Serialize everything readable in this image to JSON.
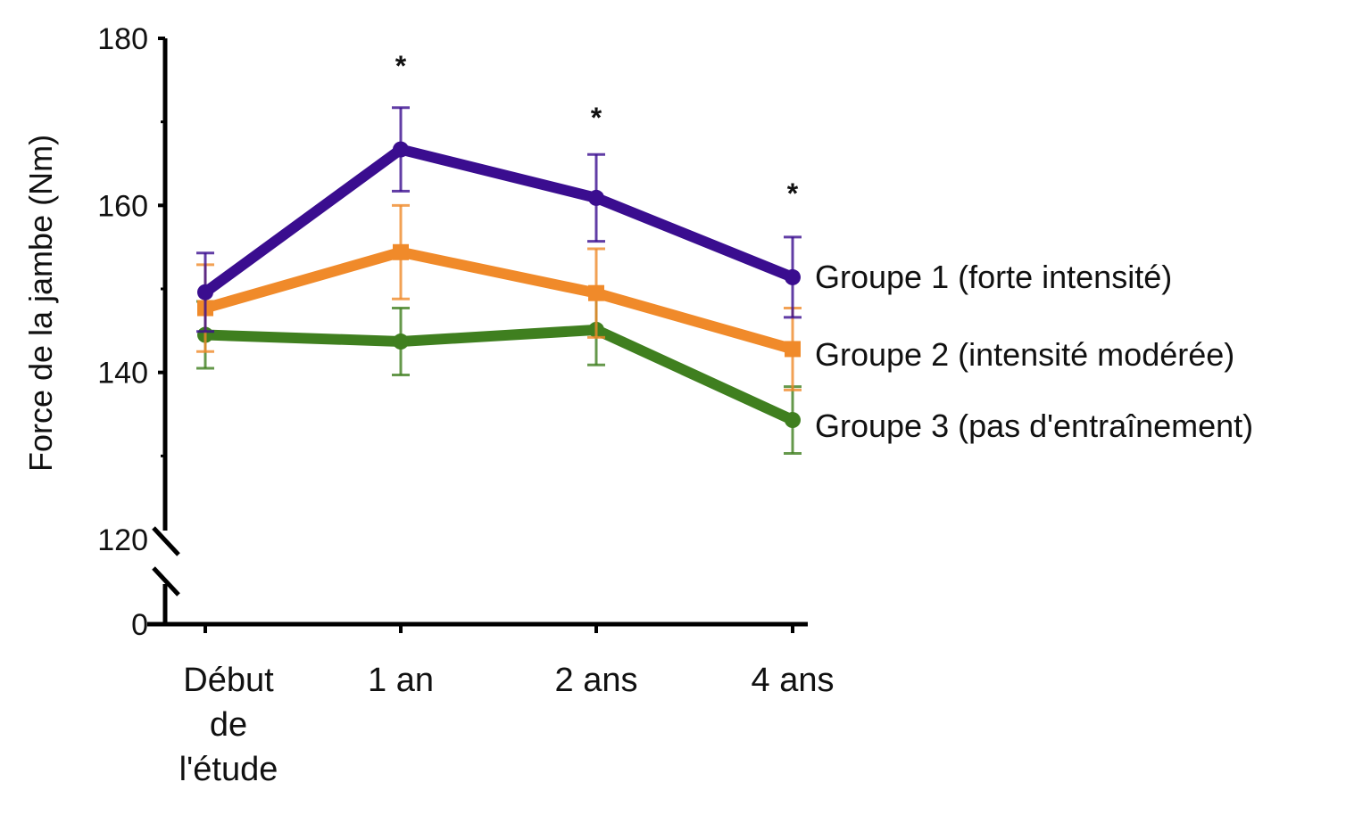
{
  "chart_data": {
    "type": "line",
    "title": "",
    "xlabel": "",
    "ylabel": "Force de la jambe (Nm)",
    "categories": [
      "Début de l'étude",
      "1 an",
      "2 ans",
      "4 ans"
    ],
    "category_lines": [
      [
        "Début",
        "de",
        "l'étude"
      ],
      [
        "1 an"
      ],
      [
        "2 ans"
      ],
      [
        "4 ans"
      ]
    ],
    "y_ticks": [
      0,
      120,
      140,
      160,
      180
    ],
    "y_minor_ticks": [
      130,
      150,
      170
    ],
    "ylim": [
      120,
      180
    ],
    "axis_break": true,
    "grid": false,
    "legend_position": "right, inline at line ends",
    "series": [
      {
        "name": "Groupe 1 (forte intensité)",
        "color": "#3a0d8f",
        "values": [
          149.6,
          166.7,
          160.9,
          151.4
        ],
        "errors": [
          4.7,
          5.0,
          5.2,
          4.8
        ]
      },
      {
        "name": "Groupe 2 (intensité modérée)",
        "color": "#f08a2a",
        "values": [
          147.7,
          154.4,
          149.5,
          142.8
        ],
        "errors": [
          5.2,
          5.6,
          5.3,
          4.9
        ]
      },
      {
        "name": "Groupe 3 (pas d'entraînement)",
        "color": "#3f7f1f",
        "values": [
          144.5,
          143.7,
          145.1,
          134.3
        ],
        "errors": [
          4.0,
          4.0,
          4.2,
          4.0
        ]
      }
    ],
    "annotations": [
      {
        "category": "1 an",
        "text": "*"
      },
      {
        "category": "2 ans",
        "text": "*"
      },
      {
        "category": "4 ans",
        "text": "*"
      }
    ]
  }
}
